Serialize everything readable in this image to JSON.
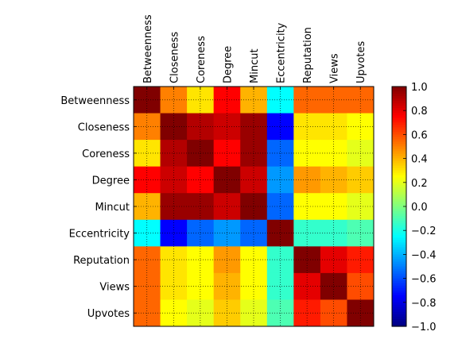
{
  "chart_data": {
    "type": "heatmap",
    "title": "",
    "xlabel": "",
    "ylabel": "",
    "categories": [
      "Betweenness",
      "Closeness",
      "Coreness",
      "Degree",
      "Mincut",
      "Eccentricity",
      "Reputation",
      "Views",
      "Upvotes"
    ],
    "values": [
      [
        1.0,
        0.5,
        0.3,
        0.75,
        0.4,
        -0.25,
        0.55,
        0.55,
        0.55
      ],
      [
        0.5,
        1.0,
        0.9,
        0.85,
        0.95,
        -0.75,
        0.3,
        0.3,
        0.25
      ],
      [
        0.3,
        0.9,
        1.0,
        0.75,
        0.95,
        -0.55,
        0.25,
        0.25,
        0.2
      ],
      [
        0.75,
        0.85,
        0.75,
        1.0,
        0.85,
        -0.45,
        0.45,
        0.4,
        0.35
      ],
      [
        0.4,
        0.95,
        0.95,
        0.85,
        1.0,
        -0.55,
        0.25,
        0.25,
        0.2
      ],
      [
        -0.25,
        -0.75,
        -0.55,
        -0.45,
        -0.55,
        1.0,
        -0.15,
        -0.15,
        -0.1
      ],
      [
        0.55,
        0.3,
        0.25,
        0.45,
        0.25,
        -0.15,
        1.0,
        0.8,
        0.7
      ],
      [
        0.55,
        0.3,
        0.25,
        0.4,
        0.25,
        -0.15,
        0.8,
        1.0,
        0.6
      ],
      [
        0.55,
        0.25,
        0.2,
        0.35,
        0.2,
        -0.1,
        0.7,
        0.6,
        1.0
      ]
    ],
    "colorbar": {
      "range": [
        -1.0,
        1.0
      ],
      "ticks": [
        "1.0",
        "0.8",
        "0.6",
        "0.4",
        "0.2",
        "0.0",
        "−0.2",
        "−0.4",
        "−0.6",
        "−0.8",
        "−1.0"
      ],
      "tick_values": [
        1.0,
        0.8,
        0.6,
        0.4,
        0.2,
        0.0,
        -0.2,
        -0.4,
        -0.6,
        -0.8,
        -1.0
      ],
      "colormap": "jet"
    },
    "grid": true,
    "x_tick_rotation": "vertical",
    "x_tick_position": "top"
  }
}
